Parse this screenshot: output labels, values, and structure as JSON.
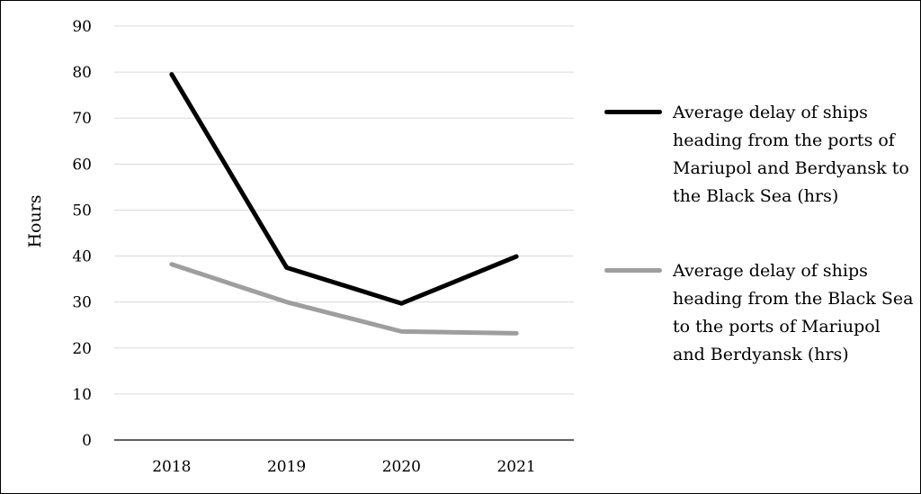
{
  "chart_data": {
    "type": "line",
    "categories": [
      "2018",
      "2019",
      "2020",
      "2021"
    ],
    "ylabel": "Hours",
    "ylim": [
      0,
      90
    ],
    "yticks": [
      "0",
      "10",
      "20",
      "30",
      "40",
      "50",
      "60",
      "70",
      "80",
      "90"
    ],
    "grid": true,
    "legend_position": "right",
    "series": [
      {
        "name": "Average delay of ships heading from the ports of Mariupol and Berdyansk to the Black Sea (hrs)",
        "values": [
          79.5,
          37.5,
          29.7,
          39.9
        ],
        "color": "#000000"
      },
      {
        "name": "Average delay of ships heading from the Black Sea to the ports of Mariupol and Berdyansk (hrs)",
        "values": [
          38.2,
          30.0,
          23.6,
          23.2
        ],
        "color": "#9e9e9e"
      }
    ]
  }
}
